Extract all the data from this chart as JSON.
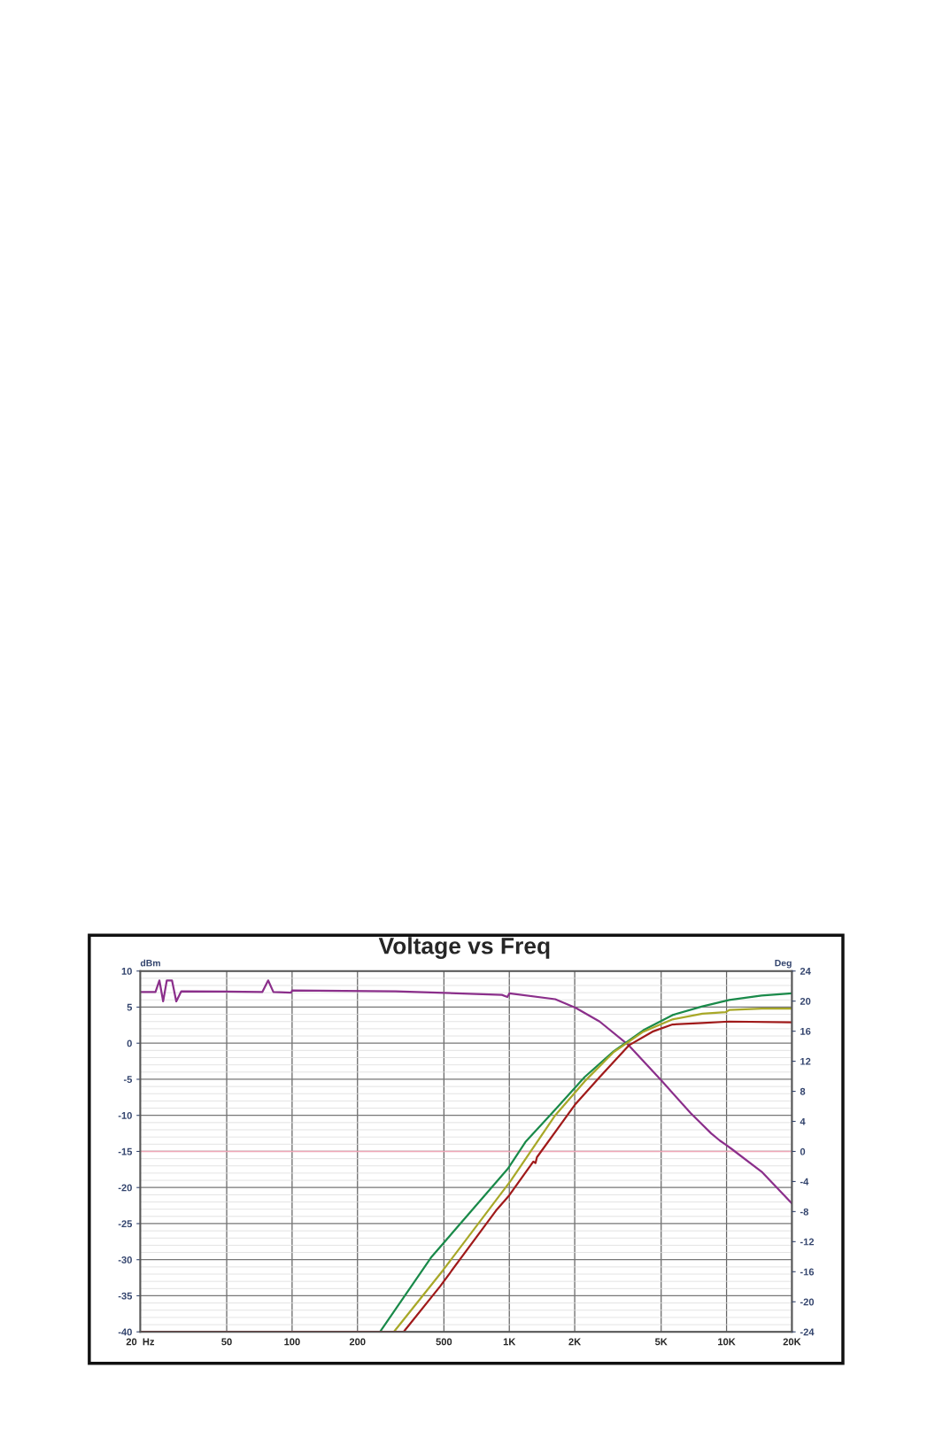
{
  "chart_data": {
    "type": "line",
    "title": "Voltage vs Freq",
    "ylabel": "dBm",
    "y2label": "Deg",
    "log": "x",
    "grid": true,
    "legend": false,
    "marker": "none",
    "line_style": "solid",
    "xlim": [
      20,
      20000
    ],
    "xticks": [
      {
        "value": 20,
        "label": "20  Hz"
      },
      50,
      100,
      200,
      500,
      {
        "value": 1000,
        "label": "1K"
      },
      {
        "value": 2000,
        "label": "2K"
      },
      {
        "value": 5000,
        "label": "5K"
      },
      {
        "value": 10000,
        "label": "10K"
      },
      {
        "value": 20000,
        "label": "20K"
      }
    ],
    "ylim": [
      -40,
      10
    ],
    "yticks": [
      10,
      5,
      0,
      -5,
      -10,
      -15,
      -20,
      -25,
      -30,
      -35,
      -40
    ],
    "y2lim": [
      -24,
      24
    ],
    "y2ticks": [
      24,
      20,
      16,
      12,
      8,
      4,
      0,
      -4,
      -8,
      -12,
      -16,
      -20,
      -24
    ],
    "ref_lines": [
      {
        "axis": "y",
        "value": -15,
        "color": "#f0a8b8",
        "line_style": "solid"
      }
    ],
    "series": [
      {
        "color": "#8b2f8b",
        "x": [
          20,
          23.5,
          24.5,
          25.5,
          26.5,
          28,
          29.3,
          30.9,
          73,
          77.6,
          82,
          99,
          100,
          300,
          924,
          980,
          1000,
          1626,
          2020,
          2605,
          3550,
          5020,
          6840,
          8500,
          9320,
          9960,
          10600,
          14500,
          20000
        ],
        "values": [
          7.1,
          7.1,
          8.7,
          5.8,
          8.7,
          8.7,
          5.8,
          7.2,
          7.1,
          8.7,
          7.1,
          7.0,
          7.3,
          7.2,
          6.7,
          6.4,
          6.9,
          6.1,
          4.9,
          3.0,
          -0.3,
          -5.2,
          -9.7,
          -12.5,
          -13.5,
          -14.1,
          -14.7,
          -17.8,
          -22.2
        ]
      },
      {
        "color": "#1a8a4a",
        "x": [
          20,
          254,
          436,
          984,
          1186,
          1626,
          2220,
          3030,
          4140,
          5640,
          7740,
          10290,
          14500,
          20000
        ],
        "values": [
          -40,
          -40,
          -29.7,
          -17.4,
          -13.7,
          -9.2,
          -4.7,
          -1.1,
          1.8,
          3.9,
          5.1,
          6.0,
          6.6,
          6.9
        ]
      },
      {
        "color": "#a8a828",
        "x": [
          20,
          294,
          494,
          1018,
          1626,
          2220,
          3030,
          4140,
          5640,
          7740,
          9900,
          10290,
          14500,
          20000
        ],
        "values": [
          -40,
          -40,
          -31.5,
          -19.0,
          -10.0,
          -5.3,
          -1.2,
          1.6,
          3.3,
          4.1,
          4.3,
          4.6,
          4.8,
          4.8
        ]
      },
      {
        "color": "#a01a1a",
        "x": [
          20,
          326,
          480,
          868,
          998,
          1290,
          1320,
          1340,
          2020,
          2605,
          3550,
          4560,
          5640,
          7740,
          10290,
          20000
        ],
        "values": [
          -40,
          -40,
          -33.7,
          -23.2,
          -21.1,
          -16.4,
          -16.6,
          -15.8,
          -8.4,
          -4.7,
          -0.3,
          1.6,
          2.6,
          2.8,
          3.0,
          2.9
        ]
      }
    ]
  }
}
